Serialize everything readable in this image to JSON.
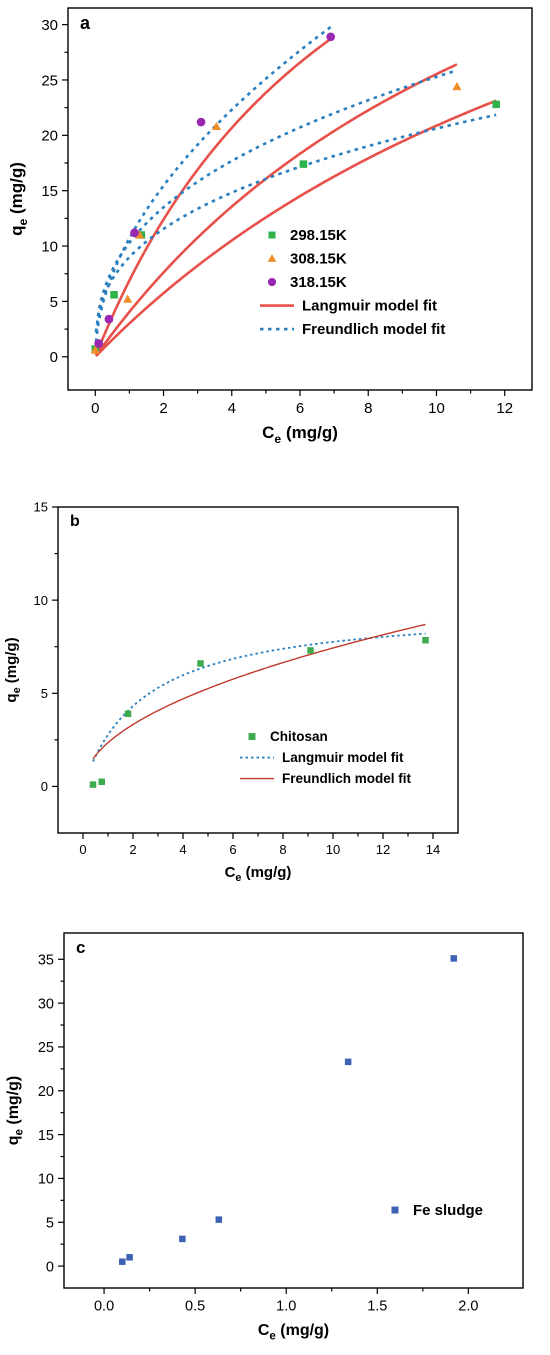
{
  "chart_data": [
    {
      "type": "scatter",
      "panel_label": "a",
      "xlabel_main": "C",
      "xlabel_sub": "e",
      "xlabel_unit": " (mg/g)",
      "ylabel_main": "q",
      "ylabel_sub": "e",
      "ylabel_unit": " (mg/g)",
      "xlim": [
        -0.8,
        12.8
      ],
      "ylim": [
        -3,
        31.5
      ],
      "xticks": [
        0,
        2,
        4,
        6,
        8,
        10,
        12
      ],
      "yticks": [
        0,
        5,
        10,
        15,
        20,
        25,
        30
      ],
      "legend_position": "bottom-right",
      "series": [
        {
          "name": "298.15K",
          "marker": "square",
          "color": "#2db34a",
          "x": [
            0.0,
            0.55,
            1.35,
            6.1,
            11.75
          ],
          "y": [
            0.7,
            5.6,
            11.0,
            17.4,
            22.8
          ]
        },
        {
          "name": "308.15K",
          "marker": "triangle",
          "color": "#f28c28",
          "x": [
            0.0,
            0.95,
            1.3,
            3.55,
            10.6
          ],
          "y": [
            0.6,
            5.2,
            11.0,
            20.8,
            24.4
          ]
        },
        {
          "name": "318.15K",
          "marker": "circle",
          "color": "#9b27b0",
          "x": [
            0.1,
            0.4,
            1.15,
            3.1,
            6.9
          ],
          "y": [
            1.2,
            3.4,
            11.2,
            21.2,
            28.9
          ]
        }
      ],
      "fits": [
        {
          "name": "Langmuir model fit",
          "style": "solid",
          "color": "#e8504a",
          "model": "langmuir",
          "curves": [
            {
              "qm": 61.0,
              "KL": 0.052,
              "xmin": 0.02,
              "xmax": 11.75
            },
            {
              "qm": 62.0,
              "KL": 0.07,
              "xmin": 0.02,
              "xmax": 10.6
            },
            {
              "qm": 62.0,
              "KL": 0.125,
              "xmin": 0.02,
              "xmax": 6.9
            }
          ]
        },
        {
          "name": "Freundlich model fit",
          "style": "dotted",
          "color": "#2a7fbf",
          "model": "freundlich",
          "curves": [
            {
              "KF": 9.0,
              "n": 0.36,
              "xmin": 0.02,
              "xmax": 11.75
            },
            {
              "KF": 10.3,
              "n": 0.39,
              "xmin": 0.02,
              "xmax": 10.6
            },
            {
              "KF": 10.7,
              "n": 0.53,
              "xmin": 0.02,
              "xmax": 6.9
            }
          ]
        }
      ]
    },
    {
      "type": "scatter",
      "panel_label": "b",
      "xlabel_main": "C",
      "xlabel_sub": "e",
      "xlabel_unit": " (mg/g)",
      "ylabel_main": "q",
      "ylabel_sub": "e",
      "ylabel_unit": " (mg/g)",
      "xlim": [
        -1,
        15
      ],
      "ylim": [
        -2.5,
        15
      ],
      "xticks": [
        0,
        2,
        4,
        6,
        8,
        10,
        12,
        14
      ],
      "yticks": [
        0,
        5,
        10,
        15
      ],
      "legend_position": "bottom-right",
      "series": [
        {
          "name": "Chitosan",
          "marker": "square",
          "color": "#3dab4e",
          "x": [
            0.4,
            0.75,
            1.8,
            4.7,
            9.1,
            13.7
          ],
          "y": [
            0.1,
            0.25,
            3.9,
            6.6,
            7.3,
            7.85
          ]
        }
      ],
      "fits": [
        {
          "name": "Langmuir model fit",
          "style": "dotted",
          "color": "#2a7fbf",
          "model": "langmuir",
          "curves": [
            {
              "qm": 9.7,
              "KL": 0.4,
              "xmin": 0.4,
              "xmax": 13.7
            }
          ]
        },
        {
          "name": "Freundlich model fit",
          "style": "solid",
          "color": "#c0392b",
          "model": "freundlich",
          "curves": [
            {
              "KF": 2.35,
              "n": 0.5,
              "xmin": 0.4,
              "xmax": 13.7
            }
          ]
        }
      ]
    },
    {
      "type": "scatter",
      "panel_label": "c",
      "xlabel_main": "C",
      "xlabel_sub": "e",
      "xlabel_unit": " (mg/g)",
      "ylabel_main": "q",
      "ylabel_sub": "e",
      "ylabel_unit": " (mg/g)",
      "xlim": [
        -0.22,
        2.3
      ],
      "ylim": [
        -2.5,
        38
      ],
      "xticks": [
        0.0,
        0.5,
        1.0,
        1.5,
        2.0
      ],
      "xtick_labels": [
        "0.0",
        "0.5",
        "1.0",
        "1.5",
        "2.0"
      ],
      "yticks": [
        0,
        5,
        10,
        15,
        20,
        25,
        30,
        35
      ],
      "legend_position": "bottom-right",
      "series": [
        {
          "name": "Fe sludge",
          "marker": "square",
          "color": "#3e62b5",
          "x": [
            0.1,
            0.14,
            0.43,
            0.63,
            1.34,
            1.92
          ],
          "y": [
            0.5,
            1.0,
            3.1,
            5.3,
            23.3,
            35.1
          ]
        }
      ],
      "fits": []
    }
  ]
}
